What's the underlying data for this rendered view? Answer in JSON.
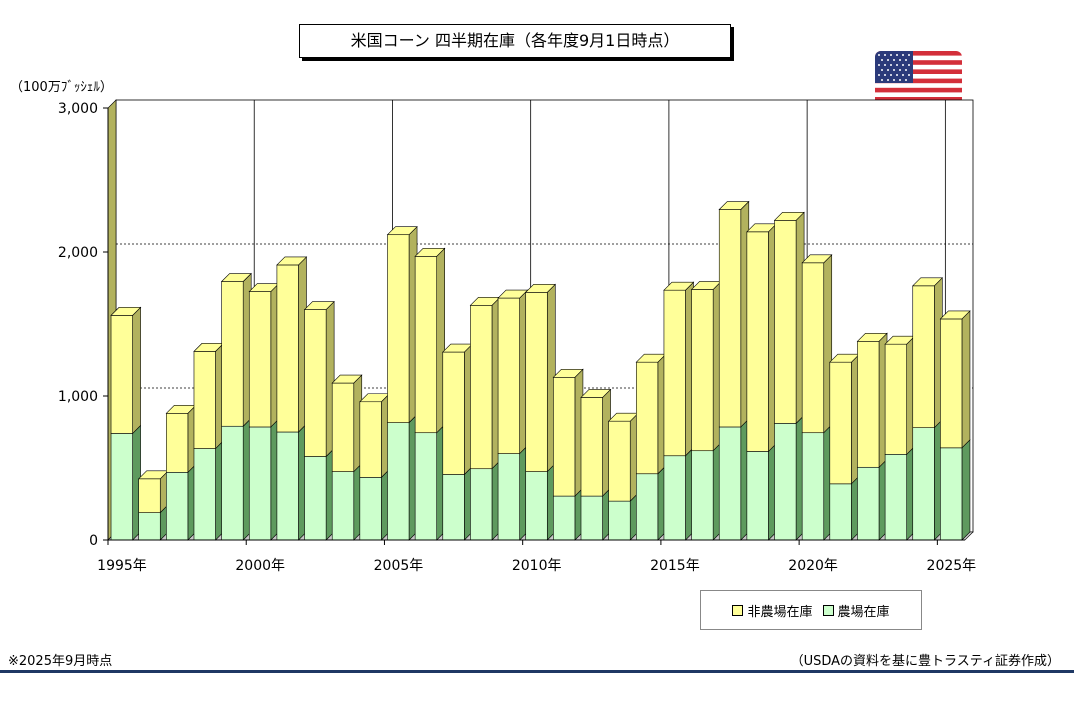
{
  "title": "米国コーン 四半期在庫（各年度9月1日時点）",
  "unit_label": "（100万ﾌﾞｯｼｪﾙ）",
  "note": "※2025年9月時点",
  "source": "（USDAの資料を基に豊トラスティ証券作成）",
  "colors": {
    "off_farm": "#ffff99",
    "on_farm": "#ccffcc",
    "off_farm_side": "#b2b25e",
    "on_farm_side": "#5e9a5e",
    "bottom_rule": "#1f3864"
  },
  "flag": "us-flag-icon",
  "chart_data": {
    "type": "bar",
    "stacked": true,
    "categories": [
      "1995年",
      "1996年",
      "1997年",
      "1998年",
      "1999年",
      "2000年",
      "2001年",
      "2002年",
      "2003年",
      "2004年",
      "2005年",
      "2006年",
      "2007年",
      "2008年",
      "2009年",
      "2010年",
      "2011年",
      "2012年",
      "2013年",
      "2014年",
      "2015年",
      "2016年",
      "2017年",
      "2018年",
      "2019年",
      "2020年",
      "2021年",
      "2022年",
      "2023年",
      "2024年",
      "2025年"
    ],
    "x_tick_labels": [
      "1995年",
      "2000年",
      "2005年",
      "2010年",
      "2015年",
      "2020年",
      "2025年"
    ],
    "series": [
      {
        "name": "農場在庫",
        "values": [
          740,
          190,
          470,
          635,
          790,
          785,
          750,
          580,
          475,
          435,
          815,
          745,
          455,
          495,
          600,
          475,
          305,
          305,
          270,
          460,
          585,
          620,
          785,
          615,
          810,
          745,
          390,
          505,
          595,
          780,
          640
        ]
      },
      {
        "name": "非農場在庫",
        "values": [
          820,
          235,
          410,
          675,
          1005,
          940,
          1160,
          1020,
          615,
          525,
          1305,
          1225,
          850,
          1135,
          1080,
          1245,
          825,
          685,
          555,
          775,
          1150,
          1120,
          1510,
          1525,
          1410,
          1180,
          845,
          875,
          765,
          985,
          895
        ]
      }
    ],
    "ylim": [
      0,
      3000
    ],
    "y_ticks": [
      0,
      1000,
      2000,
      3000
    ],
    "y_tick_labels": [
      "0",
      "1,000",
      "2,000",
      "3,000"
    ],
    "legend": [
      "非農場在庫",
      "農場在庫"
    ],
    "legend_position": "bottom-right"
  }
}
